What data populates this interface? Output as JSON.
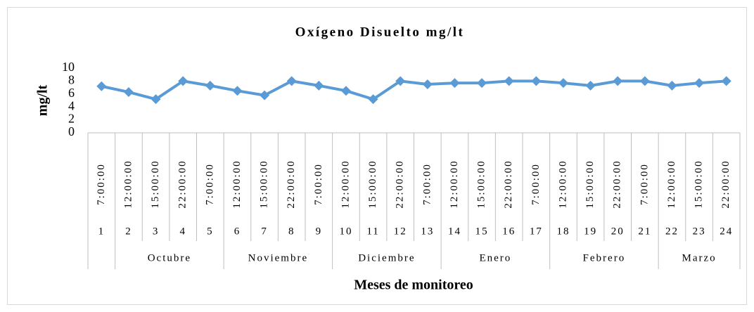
{
  "chart_data": {
    "type": "line",
    "title": "Oxígeno Disuelto mg/lt",
    "y_label": "mg/lt",
    "x_label": "Meses de monitoreo",
    "categories": {
      "time": [
        "7:00:00",
        "12:00:00",
        "15:00:00",
        "22:00:00",
        "7:00:00",
        "12:00:00",
        "15:00:00",
        "22:00:00",
        "7:00:00",
        "12:00:00",
        "15:00:00",
        "22:00:00",
        "7:00:00",
        "12:00:00",
        "15:00:00",
        "22:00:00",
        "7:00:00",
        "12:00:00",
        "15:00:00",
        "22:00:00",
        "7:00:00",
        "12:00:00",
        "15:00:00",
        "22:00:00"
      ],
      "index": [
        "1",
        "2",
        "3",
        "4",
        "5",
        "6",
        "7",
        "8",
        "9",
        "10",
        "11",
        "12",
        "13",
        "14",
        "15",
        "16",
        "17",
        "18",
        "19",
        "20",
        "21",
        "22",
        "23",
        "24"
      ],
      "month": [
        null,
        "Octubre",
        "Octubre",
        "Octubre",
        "Octubre",
        "Noviembre",
        "Noviembre",
        "Noviembre",
        "Noviembre",
        "Diciembre",
        "Diciembre",
        "Diciembre",
        "Diciembre",
        "Enero",
        "Enero",
        "Enero",
        "Enero",
        "Febrero",
        "Febrero",
        "Febrero",
        "Febrero",
        "Marzo",
        "Marzo",
        "Marzo"
      ]
    },
    "series": [
      {
        "name": "Oxígeno Disuelto",
        "color": "#5b9bd5",
        "values": [
          7.2,
          6.3,
          5.2,
          8.0,
          7.3,
          6.5,
          5.8,
          8.0,
          7.3,
          6.5,
          5.2,
          8.0,
          7.5,
          7.7,
          7.7,
          8.0,
          8.0,
          7.7,
          7.3,
          8.0,
          8.0,
          7.3,
          7.7,
          8.0
        ]
      }
    ],
    "ylim": [
      0,
      10
    ],
    "yticks": [
      0,
      2,
      4,
      6,
      8,
      10
    ],
    "grid": false
  }
}
